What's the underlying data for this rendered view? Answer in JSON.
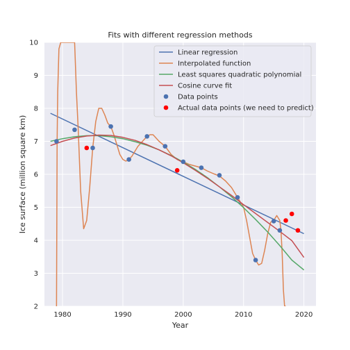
{
  "chart_data": {
    "type": "line",
    "title": "Fits with different regression methods",
    "xlabel": "Year",
    "ylabel": "Ice surface (million square km)",
    "xlim": [
      1977,
      2022
    ],
    "ylim": [
      2,
      10
    ],
    "xticks": [
      1980,
      1990,
      2000,
      2010,
      2020
    ],
    "yticks": [
      2,
      3,
      4,
      5,
      6,
      7,
      8,
      9,
      10
    ],
    "grid": true,
    "legend_position": "top-right",
    "colors": {
      "background": "#eaeaf2",
      "grid": "#ffffff",
      "linear": "#4c72b0",
      "interpolated": "#dd8452",
      "quadratic": "#55a868",
      "cosine": "#c44e52",
      "data_points": "#4c72b0",
      "actual_points": "#ff0000"
    },
    "series": [
      {
        "name": "Linear regression",
        "kind": "line",
        "color": "#4c72b0",
        "x": [
          1978,
          2020
        ],
        "y": [
          7.85,
          4.2
        ]
      },
      {
        "name": "Interpolated function",
        "kind": "line",
        "color": "#dd8452",
        "x": [
          1979,
          1979.1,
          1979.2,
          1979.4,
          1979.7,
          1980,
          1981,
          1981.5,
          1982,
          1982.3,
          1982.6,
          1983,
          1983.5,
          1984,
          1984.5,
          1985,
          1985.5,
          1986,
          1986.5,
          1987,
          1987.5,
          1988,
          1988.5,
          1989,
          1989.5,
          1990,
          1990.5,
          1991,
          1991.5,
          1992,
          1992.5,
          1993,
          1993.5,
          1994,
          1994.5,
          1995,
          1995.5,
          1996,
          1997,
          1998,
          1999,
          2000,
          2001,
          2002,
          2003,
          2004,
          2005,
          2006,
          2007,
          2008,
          2009,
          2010,
          2010.5,
          2011,
          2011.5,
          2012,
          2012.5,
          2013,
          2013.5,
          2014,
          2014.5,
          2015,
          2015.5,
          2016,
          2016.2,
          2016.4,
          2016.6,
          2016.8,
          2017
        ],
        "y": [
          2.0,
          7.0,
          8.5,
          9.8,
          10.0,
          10.0,
          10.0,
          10.0,
          10.0,
          8.5,
          7.35,
          5.5,
          4.35,
          4.6,
          5.6,
          6.8,
          7.6,
          8.0,
          8.0,
          7.8,
          7.55,
          7.45,
          7.2,
          6.9,
          6.6,
          6.45,
          6.4,
          6.45,
          6.55,
          6.7,
          6.85,
          6.95,
          7.05,
          7.15,
          7.2,
          7.2,
          7.1,
          7.0,
          6.85,
          6.6,
          6.45,
          6.38,
          6.3,
          6.25,
          6.2,
          6.1,
          6.02,
          5.95,
          5.8,
          5.6,
          5.3,
          5.0,
          4.6,
          4.1,
          3.6,
          3.4,
          3.25,
          3.3,
          3.7,
          4.2,
          4.55,
          4.6,
          4.75,
          4.6,
          4.3,
          3.6,
          2.5,
          2.0,
          2.0
        ]
      },
      {
        "name": "Least squares quadratic polynomial",
        "kind": "line",
        "color": "#55a868",
        "x": [
          1978,
          1980,
          1982,
          1984,
          1986,
          1988,
          1990,
          1992,
          1994,
          1996,
          1998,
          2000,
          2002,
          2004,
          2006,
          2008,
          2010,
          2012,
          2014,
          2016,
          2018,
          2020
        ],
        "y": [
          7.0,
          7.08,
          7.14,
          7.17,
          7.17,
          7.14,
          7.08,
          6.99,
          6.88,
          6.74,
          6.57,
          6.37,
          6.15,
          5.9,
          5.62,
          5.32,
          4.99,
          4.63,
          4.25,
          3.84,
          3.4,
          3.1
        ]
      },
      {
        "name": "Cosine curve fit",
        "kind": "line",
        "color": "#c44e52",
        "x": [
          1978,
          1980,
          1982,
          1984,
          1986,
          1988,
          1990,
          1992,
          1994,
          1996,
          1998,
          2000,
          2002,
          2004,
          2006,
          2008,
          2010,
          2012,
          2014,
          2016,
          2018,
          2020
        ],
        "y": [
          6.87,
          7.0,
          7.1,
          7.16,
          7.19,
          7.18,
          7.12,
          7.03,
          6.9,
          6.74,
          6.56,
          6.35,
          6.12,
          5.88,
          5.62,
          5.36,
          5.08,
          4.81,
          4.54,
          4.27,
          3.99,
          3.48
        ]
      },
      {
        "name": "Data points",
        "kind": "scatter",
        "color": "#4c72b0",
        "x": [
          1979,
          1982,
          1985,
          1988,
          1991,
          1994,
          1997,
          2000,
          2003,
          2006,
          2009,
          2012,
          2015,
          2016
        ],
        "y": [
          7.0,
          7.35,
          6.8,
          7.45,
          6.45,
          7.15,
          6.85,
          6.38,
          6.2,
          5.97,
          5.3,
          3.4,
          4.58,
          4.3
        ]
      },
      {
        "name": "Actual data points (we need to predict)",
        "kind": "scatter",
        "color": "#ff0000",
        "x": [
          1984,
          1999,
          2017,
          2018,
          2019
        ],
        "y": [
          6.8,
          6.12,
          4.6,
          4.8,
          4.3
        ]
      }
    ]
  }
}
